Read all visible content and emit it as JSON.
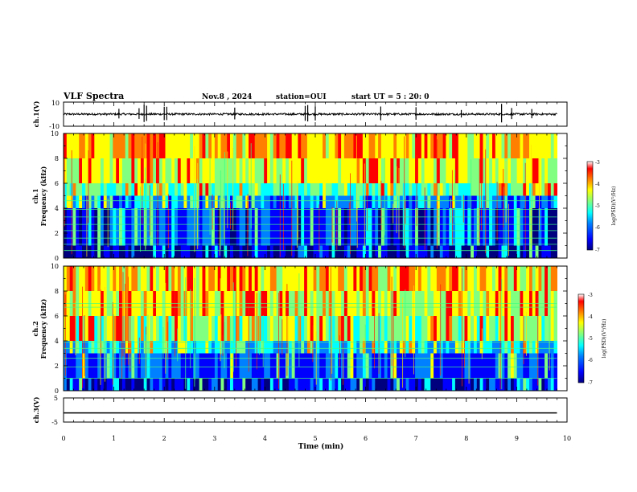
{
  "header": {
    "title": "VLF Spectra",
    "date": "Nov.8 , 2024",
    "station": "station=OUI",
    "start": "start UT = 5 : 20: 0"
  },
  "colorbar": {
    "ticks": [
      "-3",
      "-4",
      "-5",
      "-6",
      "-7"
    ],
    "label": "log(PSD)(V²/Hz)",
    "colormap": [
      "#00007f",
      "#0000ff",
      "#0080ff",
      "#00ffff",
      "#80ff80",
      "#ffff00",
      "#ff8000",
      "#ff0000",
      "#ffffff"
    ]
  },
  "chart_data": [
    {
      "type": "line",
      "panel": "ch1-waveform",
      "ylabel": "ch.1(V)",
      "ylim": [
        -10,
        10
      ],
      "y_tick_labels": [
        "10",
        "-10"
      ],
      "xlim": [
        0,
        10
      ],
      "baseline": 0,
      "spike_times_min": [
        1.1,
        1.5,
        1.6,
        1.65,
        2.0,
        2.05,
        3.4,
        4.8,
        4.85,
        5.0,
        6.3,
        7.0,
        7.9,
        8.7,
        8.9,
        9.3
      ]
    },
    {
      "type": "heatmap",
      "panel": "ch1-spectrogram",
      "ylabel": "ch.1",
      "ylabel2": "Frequency (kHz)",
      "ylim": [
        0,
        10
      ],
      "y_tick_labels": [
        "0",
        "2",
        "4",
        "6",
        "8",
        "10"
      ],
      "xlim": [
        0,
        9.8
      ],
      "color_range": [
        -7,
        -3
      ],
      "levels_by_freq_khz": [
        {
          "f": [
            0,
            1
          ],
          "log_psd": -6.6
        },
        {
          "f": [
            1,
            4
          ],
          "log_psd": -6.2
        },
        {
          "f": [
            4,
            5
          ],
          "log_psd": -5.7
        },
        {
          "f": [
            5,
            6
          ],
          "log_psd": -5.0
        },
        {
          "f": [
            6,
            8
          ],
          "log_psd": -4.5
        },
        {
          "f": [
            8,
            10
          ],
          "log_psd": -4.1
        }
      ],
      "tone_lines_khz": [
        0.6,
        1.1,
        1.6,
        2.2,
        2.7,
        3.3,
        3.9,
        4.6
      ]
    },
    {
      "type": "heatmap",
      "panel": "ch2-spectrogram",
      "ylabel": "ch.2",
      "ylabel2": "Frequency (kHz)",
      "ylim": [
        0,
        10
      ],
      "y_tick_labels": [
        "0",
        "2",
        "4",
        "6",
        "8",
        "10"
      ],
      "xlim": [
        0,
        9.8
      ],
      "color_range": [
        -7,
        -3
      ],
      "levels_by_freq_khz": [
        {
          "f": [
            0,
            1
          ],
          "log_psd": -6.4
        },
        {
          "f": [
            1,
            3
          ],
          "log_psd": -6.0
        },
        {
          "f": [
            3,
            4
          ],
          "log_psd": -5.4
        },
        {
          "f": [
            4,
            6
          ],
          "log_psd": -4.7
        },
        {
          "f": [
            6,
            8
          ],
          "log_psd": -4.4
        },
        {
          "f": [
            8,
            10
          ],
          "log_psd": -4.2
        }
      ],
      "tone_lines_khz": [
        1.0,
        1.9,
        2.6,
        3.4,
        3.9,
        6.7,
        7.0
      ]
    },
    {
      "type": "line",
      "panel": "ch3-waveform",
      "ylabel": "ch.3(V)",
      "ylim": [
        -5,
        5
      ],
      "y_tick_labels": [
        "5",
        "-5"
      ],
      "xlim": [
        0,
        9.8
      ],
      "y": [
        -1.2,
        -1.2
      ]
    }
  ],
  "xaxis": {
    "label": "Time (min)",
    "xlim": [
      0,
      10
    ],
    "tick_labels": [
      "0",
      "1",
      "2",
      "3",
      "4",
      "5",
      "6",
      "7",
      "8",
      "9",
      "10"
    ]
  }
}
